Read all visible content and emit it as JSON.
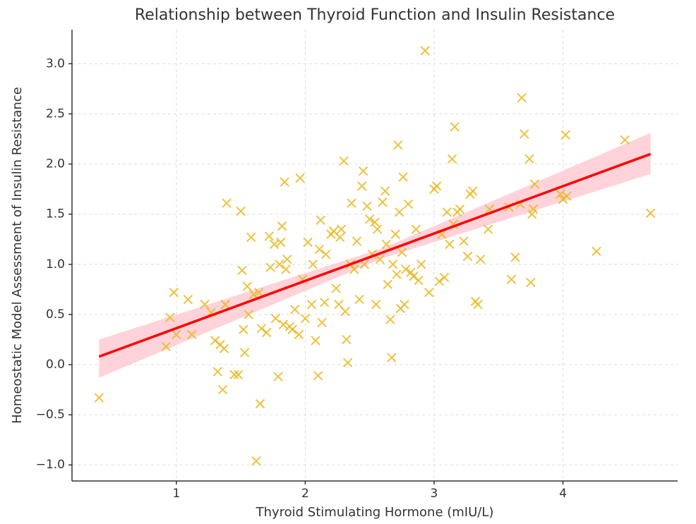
{
  "chart_data": {
    "type": "scatter",
    "title": "Relationship between Thyroid Function and Insulin Resistance",
    "x_label": "Thyroid Stimulating Hormone (mIU/L)",
    "y_label": "Homeostatic Model Assessment of Insulin Resistance",
    "xlim": [
      0.19,
      4.89
    ],
    "ylim": [
      -1.16,
      3.34
    ],
    "xticks": [
      1,
      2,
      3,
      4
    ],
    "yticks": [
      {
        "value": -1,
        "label": "−1.0"
      },
      {
        "value": -0.5,
        "label": "−0.5"
      },
      {
        "value": 0,
        "label": "0.0"
      },
      {
        "value": 0.5,
        "label": "0.5"
      },
      {
        "value": 1,
        "label": "1.0"
      },
      {
        "value": 1.5,
        "label": "1.5"
      },
      {
        "value": 2,
        "label": "2.0"
      },
      {
        "value": 2.5,
        "label": "2.5"
      },
      {
        "value": 3,
        "label": "3.0"
      }
    ],
    "grid": true,
    "series": [
      {
        "color": "#e8b820",
        "x": [
          0.4,
          0.92,
          0.95,
          0.98,
          1.0,
          1.09,
          1.12,
          1.22,
          1.27,
          1.3,
          1.32,
          1.34,
          1.36,
          1.37,
          1.38,
          1.39,
          1.45,
          1.48,
          1.5,
          1.51,
          1.52,
          1.53,
          1.55,
          1.56,
          1.58,
          1.6,
          1.62,
          1.64,
          1.65,
          1.66,
          1.7,
          1.72,
          1.73,
          1.76,
          1.77,
          1.79,
          1.8,
          1.81,
          1.82,
          1.83,
          1.84,
          1.85,
          1.86,
          1.88,
          1.9,
          1.92,
          1.95,
          1.96,
          1.98,
          2.0,
          2.02,
          2.05,
          2.06,
          2.08,
          2.1,
          2.11,
          2.12,
          2.13,
          2.15,
          2.16,
          2.2,
          2.22,
          2.24,
          2.26,
          2.27,
          2.28,
          2.3,
          2.31,
          2.32,
          2.33,
          2.35,
          2.36,
          2.38,
          2.4,
          2.42,
          2.44,
          2.45,
          2.46,
          2.48,
          2.5,
          2.52,
          2.54,
          2.55,
          2.56,
          2.58,
          2.6,
          2.62,
          2.63,
          2.64,
          2.66,
          2.67,
          2.68,
          2.7,
          2.71,
          2.72,
          2.73,
          2.74,
          2.75,
          2.76,
          2.77,
          2.78,
          2.8,
          2.82,
          2.84,
          2.86,
          2.88,
          2.9,
          2.93,
          2.96,
          3.0,
          3.02,
          3.04,
          3.06,
          3.08,
          3.1,
          3.12,
          3.14,
          3.15,
          3.16,
          3.18,
          3.2,
          3.23,
          3.26,
          3.28,
          3.3,
          3.32,
          3.34,
          3.36,
          3.42,
          3.43,
          3.58,
          3.6,
          3.63,
          3.67,
          3.68,
          3.7,
          3.74,
          3.75,
          3.76,
          3.77,
          3.78,
          3.98,
          4.0,
          4.02,
          4.03,
          4.26,
          4.48,
          4.68
        ],
        "y": [
          -0.33,
          0.18,
          0.47,
          0.72,
          0.3,
          0.65,
          0.3,
          0.6,
          0.52,
          0.24,
          -0.07,
          0.2,
          -0.25,
          0.16,
          0.6,
          1.61,
          -0.1,
          -0.1,
          1.53,
          0.94,
          0.35,
          0.12,
          0.78,
          0.5,
          1.27,
          0.7,
          -0.96,
          0.72,
          -0.39,
          0.36,
          0.32,
          1.28,
          0.97,
          1.2,
          0.46,
          -0.12,
          1.0,
          1.22,
          1.38,
          0.4,
          1.82,
          0.95,
          1.05,
          0.38,
          0.35,
          0.55,
          0.3,
          1.86,
          0.85,
          0.46,
          1.22,
          0.6,
          1.0,
          0.24,
          -0.11,
          1.15,
          1.44,
          0.42,
          0.62,
          1.1,
          1.3,
          1.33,
          0.76,
          0.6,
          1.27,
          1.35,
          2.03,
          0.53,
          0.25,
          0.02,
          1.0,
          1.61,
          0.95,
          1.23,
          0.65,
          1.78,
          1.93,
          1.0,
          1.58,
          1.45,
          1.1,
          1.42,
          0.6,
          1.35,
          1.05,
          1.62,
          1.73,
          1.2,
          0.8,
          0.45,
          0.07,
          1.0,
          1.3,
          0.9,
          2.19,
          1.52,
          0.56,
          1.12,
          1.87,
          0.6,
          0.95,
          1.6,
          0.92,
          0.88,
          1.35,
          0.84,
          1.0,
          3.13,
          0.72,
          1.75,
          1.78,
          0.83,
          1.3,
          0.87,
          1.52,
          1.2,
          2.05,
          1.4,
          2.37,
          1.52,
          1.55,
          1.23,
          1.08,
          1.7,
          1.73,
          0.63,
          0.6,
          1.05,
          1.35,
          1.55,
          1.57,
          0.85,
          1.07,
          1.6,
          2.66,
          2.3,
          2.05,
          0.82,
          1.5,
          1.55,
          1.8,
          1.7,
          1.65,
          2.29,
          1.68,
          1.13,
          2.24,
          1.51
        ]
      }
    ],
    "fit": {
      "color": "#ff0000",
      "x": [
        0.4,
        4.68
      ],
      "y": [
        0.08,
        2.1
      ]
    },
    "band": {
      "color": "#ffc8cf",
      "x": [
        0.4,
        2.6,
        4.68
      ],
      "lower": [
        -0.13,
        1.06,
        1.9
      ],
      "upper": [
        0.25,
        1.16,
        2.31
      ]
    }
  }
}
